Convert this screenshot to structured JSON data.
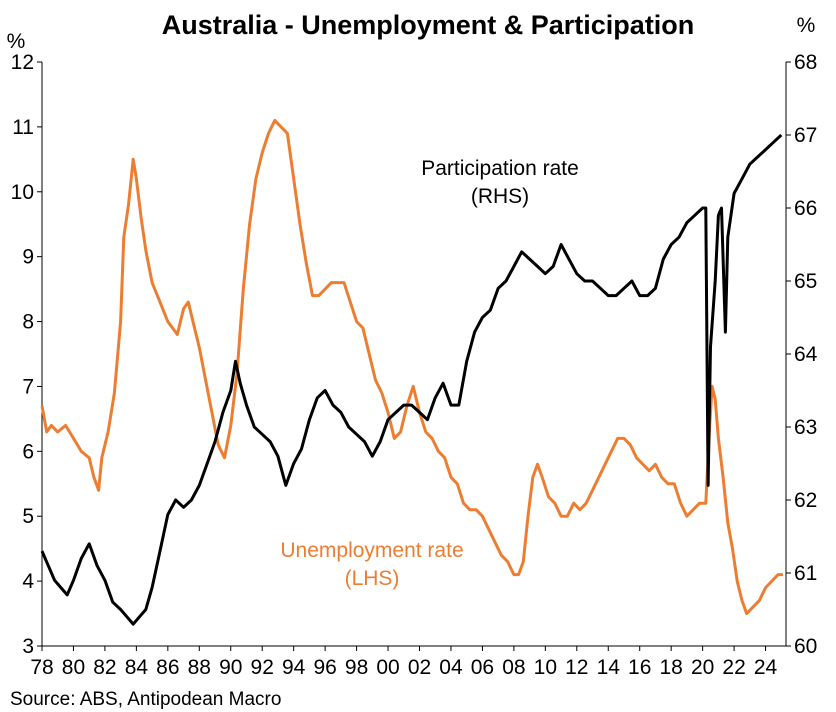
{
  "chart_data": {
    "type": "line",
    "title": "Australia - Unemployment & Participation",
    "source": "Source: ABS, Antipodean Macro",
    "left_axis": {
      "unit": "%",
      "min": 3,
      "max": 12,
      "ticks": [
        3,
        4,
        5,
        6,
        7,
        8,
        9,
        10,
        11,
        12
      ]
    },
    "right_axis": {
      "unit": "%",
      "min": 60,
      "max": 68,
      "ticks": [
        60,
        61,
        62,
        63,
        64,
        65,
        66,
        67,
        68
      ]
    },
    "x_axis": {
      "min": 1978.0,
      "max": 2025.3,
      "tick_labels": [
        "78",
        "80",
        "82",
        "84",
        "86",
        "88",
        "90",
        "92",
        "94",
        "96",
        "98",
        "00",
        "02",
        "04",
        "06",
        "08",
        "10",
        "12",
        "14",
        "16",
        "18",
        "20",
        "22",
        "24"
      ],
      "tick_years": [
        1978,
        1980,
        1982,
        1984,
        1986,
        1988,
        1990,
        1992,
        1994,
        1996,
        1998,
        2000,
        2002,
        2004,
        2006,
        2008,
        2010,
        2012,
        2014,
        2016,
        2018,
        2020,
        2022,
        2024
      ]
    },
    "grid": false,
    "series": [
      {
        "name": "Unemployment rate (LHS)",
        "label_lines": [
          "Unemployment rate",
          "(LHS)"
        ],
        "axis": "left",
        "color": "#ED7D31",
        "points": [
          [
            1978.0,
            6.7
          ],
          [
            1978.3,
            6.3
          ],
          [
            1978.6,
            6.4
          ],
          [
            1979.0,
            6.3
          ],
          [
            1979.5,
            6.4
          ],
          [
            1980.0,
            6.2
          ],
          [
            1980.5,
            6.0
          ],
          [
            1981.0,
            5.9
          ],
          [
            1981.3,
            5.6
          ],
          [
            1981.6,
            5.4
          ],
          [
            1981.8,
            5.9
          ],
          [
            1982.2,
            6.3
          ],
          [
            1982.6,
            6.9
          ],
          [
            1983.0,
            8.0
          ],
          [
            1983.2,
            9.3
          ],
          [
            1983.5,
            9.8
          ],
          [
            1983.8,
            10.5
          ],
          [
            1984.0,
            10.2
          ],
          [
            1984.3,
            9.6
          ],
          [
            1984.6,
            9.1
          ],
          [
            1985.0,
            8.6
          ],
          [
            1985.5,
            8.3
          ],
          [
            1986.0,
            8.0
          ],
          [
            1986.3,
            7.9
          ],
          [
            1986.6,
            7.8
          ],
          [
            1987.0,
            8.2
          ],
          [
            1987.3,
            8.3
          ],
          [
            1987.6,
            8.0
          ],
          [
            1988.0,
            7.6
          ],
          [
            1988.4,
            7.1
          ],
          [
            1988.8,
            6.6
          ],
          [
            1989.2,
            6.1
          ],
          [
            1989.6,
            5.9
          ],
          [
            1990.0,
            6.4
          ],
          [
            1990.4,
            7.2
          ],
          [
            1990.8,
            8.5
          ],
          [
            1991.2,
            9.5
          ],
          [
            1991.6,
            10.2
          ],
          [
            1992.0,
            10.6
          ],
          [
            1992.4,
            10.9
          ],
          [
            1992.8,
            11.1
          ],
          [
            1993.2,
            11.0
          ],
          [
            1993.6,
            10.9
          ],
          [
            1994.0,
            10.2
          ],
          [
            1994.4,
            9.5
          ],
          [
            1994.8,
            8.9
          ],
          [
            1995.2,
            8.4
          ],
          [
            1995.6,
            8.4
          ],
          [
            1996.0,
            8.5
          ],
          [
            1996.4,
            8.6
          ],
          [
            1996.8,
            8.6
          ],
          [
            1997.2,
            8.6
          ],
          [
            1997.6,
            8.3
          ],
          [
            1998.0,
            8.0
          ],
          [
            1998.4,
            7.9
          ],
          [
            1998.8,
            7.5
          ],
          [
            1999.2,
            7.1
          ],
          [
            1999.6,
            6.9
          ],
          [
            2000.0,
            6.6
          ],
          [
            2000.4,
            6.2
          ],
          [
            2000.8,
            6.3
          ],
          [
            2001.2,
            6.7
          ],
          [
            2001.6,
            7.0
          ],
          [
            2002.0,
            6.6
          ],
          [
            2002.4,
            6.3
          ],
          [
            2002.8,
            6.2
          ],
          [
            2003.2,
            6.0
          ],
          [
            2003.6,
            5.9
          ],
          [
            2004.0,
            5.6
          ],
          [
            2004.4,
            5.5
          ],
          [
            2004.8,
            5.2
          ],
          [
            2005.2,
            5.1
          ],
          [
            2005.6,
            5.1
          ],
          [
            2006.0,
            5.0
          ],
          [
            2006.4,
            4.8
          ],
          [
            2006.8,
            4.6
          ],
          [
            2007.2,
            4.4
          ],
          [
            2007.6,
            4.3
          ],
          [
            2008.0,
            4.1
          ],
          [
            2008.3,
            4.1
          ],
          [
            2008.6,
            4.3
          ],
          [
            2008.9,
            5.0
          ],
          [
            2009.2,
            5.6
          ],
          [
            2009.5,
            5.8
          ],
          [
            2009.8,
            5.6
          ],
          [
            2010.2,
            5.3
          ],
          [
            2010.6,
            5.2
          ],
          [
            2011.0,
            5.0
          ],
          [
            2011.4,
            5.0
          ],
          [
            2011.8,
            5.2
          ],
          [
            2012.2,
            5.1
          ],
          [
            2012.6,
            5.2
          ],
          [
            2013.0,
            5.4
          ],
          [
            2013.4,
            5.6
          ],
          [
            2013.8,
            5.8
          ],
          [
            2014.2,
            6.0
          ],
          [
            2014.6,
            6.2
          ],
          [
            2015.0,
            6.2
          ],
          [
            2015.4,
            6.1
          ],
          [
            2015.8,
            5.9
          ],
          [
            2016.2,
            5.8
          ],
          [
            2016.6,
            5.7
          ],
          [
            2017.0,
            5.8
          ],
          [
            2017.4,
            5.6
          ],
          [
            2017.8,
            5.5
          ],
          [
            2018.2,
            5.5
          ],
          [
            2018.6,
            5.2
          ],
          [
            2019.0,
            5.0
          ],
          [
            2019.4,
            5.1
          ],
          [
            2019.8,
            5.2
          ],
          [
            2020.2,
            5.2
          ],
          [
            2020.45,
            6.4
          ],
          [
            2020.6,
            7.0
          ],
          [
            2020.8,
            6.8
          ],
          [
            2021.0,
            6.2
          ],
          [
            2021.3,
            5.6
          ],
          [
            2021.6,
            4.9
          ],
          [
            2021.9,
            4.5
          ],
          [
            2022.2,
            4.0
          ],
          [
            2022.5,
            3.7
          ],
          [
            2022.8,
            3.5
          ],
          [
            2023.2,
            3.6
          ],
          [
            2023.6,
            3.7
          ],
          [
            2024.0,
            3.9
          ],
          [
            2024.4,
            4.0
          ],
          [
            2024.8,
            4.1
          ],
          [
            2025.1,
            4.1
          ]
        ]
      },
      {
        "name": "Participation rate (RHS)",
        "label_lines": [
          "Participation rate",
          "(RHS)"
        ],
        "axis": "right",
        "color": "#000000",
        "points": [
          [
            1978.0,
            61.3
          ],
          [
            1978.4,
            61.1
          ],
          [
            1978.8,
            60.9
          ],
          [
            1979.2,
            60.8
          ],
          [
            1979.6,
            60.7
          ],
          [
            1980.0,
            60.9
          ],
          [
            1980.5,
            61.2
          ],
          [
            1981.0,
            61.4
          ],
          [
            1981.5,
            61.1
          ],
          [
            1982.0,
            60.9
          ],
          [
            1982.5,
            60.6
          ],
          [
            1983.0,
            60.5
          ],
          [
            1983.4,
            60.4
          ],
          [
            1983.8,
            60.3
          ],
          [
            1984.2,
            60.4
          ],
          [
            1984.6,
            60.5
          ],
          [
            1985.0,
            60.8
          ],
          [
            1985.5,
            61.3
          ],
          [
            1986.0,
            61.8
          ],
          [
            1986.5,
            62.0
          ],
          [
            1987.0,
            61.9
          ],
          [
            1987.5,
            62.0
          ],
          [
            1988.0,
            62.2
          ],
          [
            1988.5,
            62.5
          ],
          [
            1989.0,
            62.8
          ],
          [
            1989.5,
            63.2
          ],
          [
            1990.0,
            63.5
          ],
          [
            1990.3,
            63.9
          ],
          [
            1990.6,
            63.6
          ],
          [
            1991.0,
            63.3
          ],
          [
            1991.5,
            63.0
          ],
          [
            1992.0,
            62.9
          ],
          [
            1992.5,
            62.8
          ],
          [
            1993.0,
            62.6
          ],
          [
            1993.5,
            62.2
          ],
          [
            1994.0,
            62.5
          ],
          [
            1994.5,
            62.7
          ],
          [
            1995.0,
            63.1
          ],
          [
            1995.5,
            63.4
          ],
          [
            1996.0,
            63.5
          ],
          [
            1996.5,
            63.3
          ],
          [
            1997.0,
            63.2
          ],
          [
            1997.5,
            63.0
          ],
          [
            1998.0,
            62.9
          ],
          [
            1998.5,
            62.8
          ],
          [
            1999.0,
            62.6
          ],
          [
            1999.5,
            62.8
          ],
          [
            2000.0,
            63.1
          ],
          [
            2000.5,
            63.2
          ],
          [
            2001.0,
            63.3
          ],
          [
            2001.5,
            63.3
          ],
          [
            2002.0,
            63.2
          ],
          [
            2002.5,
            63.1
          ],
          [
            2003.0,
            63.4
          ],
          [
            2003.5,
            63.6
          ],
          [
            2004.0,
            63.3
          ],
          [
            2004.5,
            63.3
          ],
          [
            2005.0,
            63.9
          ],
          [
            2005.5,
            64.3
          ],
          [
            2006.0,
            64.5
          ],
          [
            2006.5,
            64.6
          ],
          [
            2007.0,
            64.9
          ],
          [
            2007.5,
            65.0
          ],
          [
            2008.0,
            65.2
          ],
          [
            2008.5,
            65.4
          ],
          [
            2009.0,
            65.3
          ],
          [
            2009.5,
            65.2
          ],
          [
            2010.0,
            65.1
          ],
          [
            2010.5,
            65.2
          ],
          [
            2011.0,
            65.5
          ],
          [
            2011.5,
            65.3
          ],
          [
            2012.0,
            65.1
          ],
          [
            2012.5,
            65.0
          ],
          [
            2013.0,
            65.0
          ],
          [
            2013.5,
            64.9
          ],
          [
            2014.0,
            64.8
          ],
          [
            2014.5,
            64.8
          ],
          [
            2015.0,
            64.9
          ],
          [
            2015.5,
            65.0
          ],
          [
            2016.0,
            64.8
          ],
          [
            2016.5,
            64.8
          ],
          [
            2017.0,
            64.9
          ],
          [
            2017.5,
            65.3
          ],
          [
            2018.0,
            65.5
          ],
          [
            2018.5,
            65.6
          ],
          [
            2019.0,
            65.8
          ],
          [
            2019.5,
            65.9
          ],
          [
            2020.0,
            66.0
          ],
          [
            2020.2,
            66.0
          ],
          [
            2020.35,
            62.2
          ],
          [
            2020.5,
            64.1
          ],
          [
            2020.8,
            65.0
          ],
          [
            2021.0,
            65.9
          ],
          [
            2021.2,
            66.0
          ],
          [
            2021.45,
            64.3
          ],
          [
            2021.6,
            65.6
          ],
          [
            2022.0,
            66.2
          ],
          [
            2022.5,
            66.4
          ],
          [
            2023.0,
            66.6
          ],
          [
            2023.5,
            66.7
          ],
          [
            2024.0,
            66.8
          ],
          [
            2024.5,
            66.9
          ],
          [
            2025.0,
            67.0
          ]
        ]
      }
    ]
  }
}
